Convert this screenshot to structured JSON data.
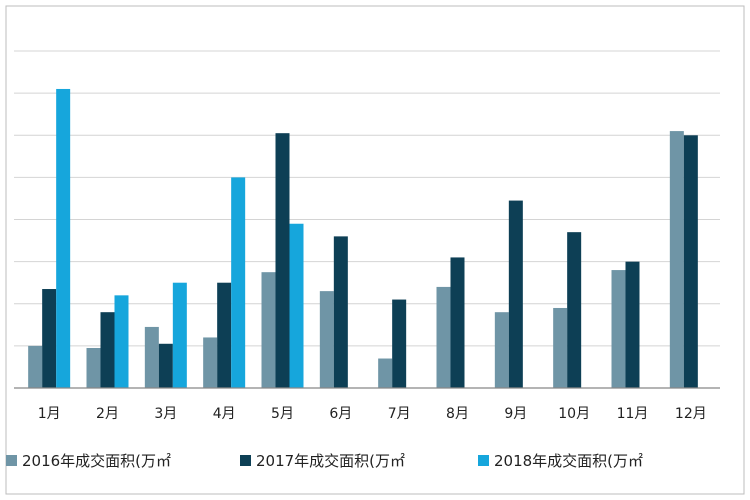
{
  "chart_data": {
    "type": "bar",
    "categories": [
      "1月",
      "2月",
      "3月",
      "4月",
      "5月",
      "6月",
      "7月",
      "8月",
      "9月",
      "10月",
      "11月",
      "12月"
    ],
    "series": [
      {
        "name": "2016年成交面积(万㎡",
        "color": "#6f95a6",
        "values": [
          1.0,
          0.95,
          1.45,
          1.2,
          2.75,
          2.3,
          0.7,
          2.4,
          1.8,
          1.9,
          2.8,
          6.1
        ]
      },
      {
        "name": "2017年成交面积(万㎡",
        "color": "#0d3f55",
        "values": [
          2.35,
          1.8,
          1.05,
          2.5,
          6.05,
          3.6,
          2.1,
          3.1,
          4.45,
          3.7,
          3.0,
          6.0
        ]
      },
      {
        "name": "2018年成交面积(万㎡",
        "color": "#16a6dc",
        "values": [
          7.1,
          2.2,
          2.5,
          5.0,
          3.9,
          null,
          null,
          null,
          null,
          null,
          null,
          null
        ]
      }
    ],
    "ylim": [
      0,
      8.5
    ],
    "grid": true,
    "legend_position": "bottom"
  }
}
